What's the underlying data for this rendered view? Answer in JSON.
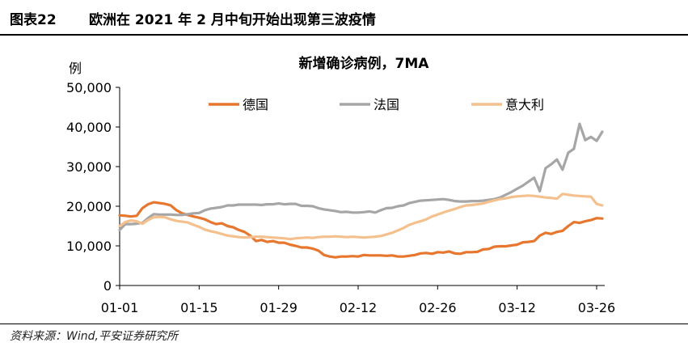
{
  "figure": {
    "number": "图表22",
    "caption": "欧洲在 2021 年 2 月中旬开始出现第三波疫情"
  },
  "source_note": "资料来源：Wind,平安证券研究所",
  "chart_data": {
    "type": "line",
    "title": "新增确诊病例，7MA",
    "ylabel": "例",
    "xlabel": "",
    "ylim": [
      0,
      50000
    ],
    "yticks": [
      "0",
      "10,000",
      "20,000",
      "30,000",
      "40,000",
      "50,000"
    ],
    "ytick_values": [
      0,
      10000,
      20000,
      30000,
      40000,
      50000
    ],
    "x_dates": [
      "01-01",
      "01-02",
      "01-03",
      "01-04",
      "01-05",
      "01-06",
      "01-07",
      "01-08",
      "01-09",
      "01-10",
      "01-11",
      "01-12",
      "01-13",
      "01-14",
      "01-15",
      "01-16",
      "01-17",
      "01-18",
      "01-19",
      "01-20",
      "01-21",
      "01-22",
      "01-23",
      "01-24",
      "01-25",
      "01-26",
      "01-27",
      "01-28",
      "01-29",
      "01-30",
      "01-31",
      "02-01",
      "02-02",
      "02-03",
      "02-04",
      "02-05",
      "02-06",
      "02-07",
      "02-08",
      "02-09",
      "02-10",
      "02-11",
      "02-12",
      "02-13",
      "02-14",
      "02-15",
      "02-16",
      "02-17",
      "02-18",
      "02-19",
      "02-20",
      "02-21",
      "02-22",
      "02-23",
      "02-24",
      "02-25",
      "02-26",
      "02-27",
      "02-28",
      "03-01",
      "03-02",
      "03-03",
      "03-04",
      "03-05",
      "03-06",
      "03-07",
      "03-08",
      "03-09",
      "03-10",
      "03-11",
      "03-12",
      "03-13",
      "03-14",
      "03-15",
      "03-16",
      "03-17",
      "03-18",
      "03-19",
      "03-20",
      "03-21",
      "03-22",
      "03-23",
      "03-24",
      "03-25",
      "03-26",
      "03-27"
    ],
    "xtick_labels": [
      "01-01",
      "01-15",
      "01-29",
      "02-12",
      "02-26",
      "03-12",
      "03-26"
    ],
    "legend_placement": "top",
    "series": [
      {
        "name": "德国",
        "color": "#E7772F",
        "values": [
          17700,
          17600,
          17400,
          17600,
          19500,
          20500,
          21000,
          20800,
          20600,
          20200,
          19000,
          18200,
          17800,
          17400,
          17100,
          16700,
          16000,
          15500,
          15700,
          15000,
          14700,
          14000,
          13500,
          12600,
          11200,
          11500,
          11000,
          11200,
          10800,
          10800,
          10300,
          10000,
          9600,
          9600,
          9300,
          8800,
          7700,
          7300,
          7100,
          7300,
          7300,
          7400,
          7300,
          7700,
          7600,
          7600,
          7600,
          7500,
          7600,
          7300,
          7300,
          7500,
          7700,
          8100,
          8200,
          8000,
          8400,
          8300,
          8600,
          8100,
          8000,
          8400,
          8400,
          8500,
          9100,
          9200,
          9800,
          9900,
          9900,
          10100,
          10300,
          10900,
          11000,
          11200,
          12600,
          13300,
          13000,
          13500,
          13800,
          15000,
          16000,
          15800,
          16200,
          16500,
          17000,
          16900
        ]
      },
      {
        "name": "法国",
        "color": "#A6A6A6",
        "values": [
          14000,
          15500,
          15500,
          15600,
          15800,
          17000,
          18000,
          17900,
          17900,
          17900,
          17800,
          17800,
          18000,
          18200,
          18300,
          19000,
          19400,
          19600,
          19800,
          20200,
          20200,
          20400,
          20400,
          20400,
          20400,
          20300,
          20500,
          20500,
          20700,
          20500,
          20600,
          20600,
          20100,
          20100,
          20000,
          19500,
          19200,
          19000,
          18800,
          18500,
          18600,
          18400,
          18400,
          18500,
          18700,
          18400,
          19000,
          19500,
          19600,
          20000,
          20200,
          20800,
          21100,
          21400,
          21500,
          21600,
          21700,
          21800,
          21600,
          21300,
          21200,
          21200,
          21300,
          21300,
          21400,
          21600,
          21800,
          22200,
          22900,
          23600,
          24400,
          25200,
          26200,
          27200,
          23800,
          29600,
          30600,
          31800,
          29200,
          33500,
          34500,
          40800,
          36700,
          37500,
          36500,
          38800
        ]
      },
      {
        "name": "意大利",
        "color": "#F4C18E",
        "values": [
          15000,
          16000,
          16400,
          16200,
          15600,
          16500,
          17200,
          17300,
          17200,
          16700,
          16300,
          16100,
          15900,
          15300,
          14800,
          14100,
          13700,
          13400,
          13000,
          12600,
          12400,
          12200,
          12100,
          12200,
          12300,
          12300,
          12200,
          12100,
          12000,
          11900,
          11700,
          11900,
          12000,
          12100,
          12000,
          12200,
          12300,
          12300,
          12400,
          12300,
          12200,
          12300,
          12200,
          12100,
          12200,
          12300,
          12500,
          12900,
          13300,
          13900,
          14500,
          15300,
          15800,
          16200,
          16700,
          17400,
          17900,
          18400,
          18900,
          19300,
          19800,
          20200,
          20300,
          20500,
          20700,
          21100,
          21500,
          21800,
          22000,
          22300,
          22500,
          22600,
          22700,
          22600,
          22400,
          22200,
          22100,
          21900,
          23100,
          22900,
          22700,
          22600,
          22500,
          22400,
          20600,
          20200
        ]
      }
    ]
  }
}
